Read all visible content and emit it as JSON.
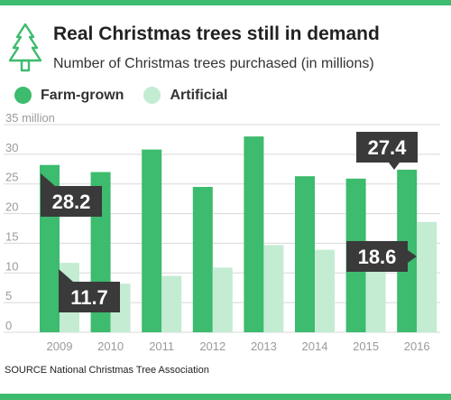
{
  "header": {
    "title": "Real Christmas trees still in demand",
    "subtitle": "Number of Christmas trees purchased (in millions)",
    "icon": "christmas-tree-icon"
  },
  "legend": {
    "items": [
      {
        "label": "Farm-grown",
        "color": "#3dbb6e"
      },
      {
        "label": "Artificial",
        "color": "#c3ecd3"
      }
    ]
  },
  "source": "SOURCE National Christmas Tree Association",
  "colors": {
    "accent": "#3dbb6e",
    "light": "#c3ecd3",
    "callout": "#3a3a3a",
    "grid": "#d8d8d8",
    "axis_text": "#9a9a9a"
  },
  "chart_data": {
    "type": "bar",
    "title": "Real Christmas trees still in demand",
    "subtitle": "Number of Christmas trees purchased (in millions)",
    "categories": [
      "2009",
      "2010",
      "2011",
      "2012",
      "2013",
      "2014",
      "2015",
      "2016"
    ],
    "series": [
      {
        "name": "Farm-grown",
        "color": "#3dbb6e",
        "values": [
          28.2,
          27.0,
          30.8,
          24.5,
          33.0,
          26.3,
          25.9,
          27.4
        ]
      },
      {
        "name": "Artificial",
        "color": "#c3ecd3",
        "values": [
          11.7,
          8.2,
          9.5,
          10.9,
          14.7,
          13.9,
          12.5,
          18.6
        ]
      }
    ],
    "ylim": [
      0,
      35
    ],
    "yticks": [
      0,
      5,
      10,
      15,
      20,
      25,
      30,
      35
    ],
    "ytick_labels": [
      "0",
      "5",
      "10",
      "15",
      "20",
      "25",
      "30",
      "35 million"
    ],
    "grid": true,
    "legend": "top-left",
    "annotations": [
      {
        "series": "Farm-grown",
        "category": "2009",
        "text": "28.2"
      },
      {
        "series": "Artificial",
        "category": "2009",
        "text": "11.7"
      },
      {
        "series": "Farm-grown",
        "category": "2016",
        "text": "27.4"
      },
      {
        "series": "Artificial",
        "category": "2016",
        "text": "18.6"
      }
    ]
  }
}
